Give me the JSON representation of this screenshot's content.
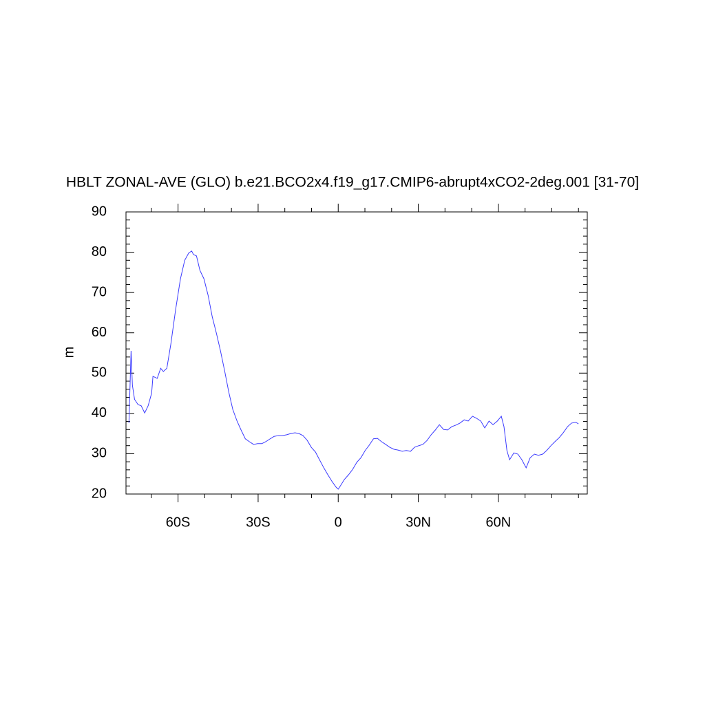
{
  "chart_data": {
    "type": "line",
    "title": "HBLT ZONAL-AVE (GLO) b.e21.BCO2x4.f19_g17.CMIP6-abrupt4xCO2-2deg.001 [31-70]",
    "ylabel": "m",
    "x": [
      -78.4,
      -77.6,
      -77.1,
      -76.3,
      -75.0,
      -73.8,
      -72.5,
      -71.2,
      -69.9,
      -69.4,
      -67.8,
      -66.5,
      -65.5,
      -64.2,
      -62.7,
      -60.9,
      -59.1,
      -57.5,
      -56.0,
      -54.9,
      -54.2,
      -53.1,
      -51.8,
      -50.3,
      -48.7,
      -47.2,
      -45.6,
      -44.1,
      -42.5,
      -41.0,
      -39.5,
      -37.9,
      -36.4,
      -34.8,
      -33.3,
      -31.7,
      -30.2,
      -28.6,
      -27.1,
      -25.5,
      -24.0,
      -22.4,
      -20.9,
      -19.3,
      -17.8,
      -16.2,
      -14.7,
      -13.2,
      -11.6,
      -10.1,
      -8.5,
      -7.0,
      -5.4,
      -3.9,
      -2.3,
      -0.8,
      0.0,
      0.8,
      2.3,
      3.9,
      5.4,
      7.0,
      8.5,
      10.1,
      11.6,
      13.2,
      14.7,
      16.2,
      17.8,
      19.3,
      20.9,
      22.4,
      24.0,
      25.5,
      27.1,
      28.6,
      30.2,
      31.7,
      33.3,
      34.8,
      36.4,
      37.9,
      39.5,
      41.0,
      42.5,
      44.1,
      45.6,
      47.2,
      48.7,
      50.3,
      51.8,
      53.4,
      54.9,
      56.5,
      58.0,
      59.6,
      61.1,
      62.1,
      63.2,
      64.2,
      65.8,
      67.3,
      68.8,
      70.4,
      71.9,
      73.5,
      75.0,
      76.6,
      78.1,
      79.7,
      81.2,
      82.8,
      84.3,
      85.9,
      87.4,
      89.0,
      90.0
    ],
    "series": [
      {
        "name": "HBLT",
        "color": "#3a3aff",
        "values": [
          37.6,
          55.5,
          47,
          43.5,
          42.2,
          41.9,
          40.1,
          41.9,
          45,
          49.2,
          48.7,
          51.2,
          50.4,
          51.2,
          57.2,
          65.8,
          73.4,
          78,
          79.8,
          80.3,
          79.4,
          79.1,
          75.5,
          73.4,
          69.2,
          64,
          59.8,
          55.5,
          50.4,
          45.3,
          41,
          38.1,
          35.9,
          33.7,
          33,
          32.3,
          32.5,
          32.5,
          33,
          33.7,
          34.3,
          34.5,
          34.5,
          34.7,
          35,
          35.2,
          35,
          34.5,
          33.3,
          31.6,
          30.4,
          28.5,
          26.5,
          24.8,
          23.1,
          21.7,
          21.2,
          22,
          23.6,
          24.8,
          26.1,
          27.9,
          29,
          30.8,
          32.1,
          33.7,
          33.8,
          33,
          32.3,
          31.6,
          31.1,
          30.9,
          30.6,
          30.8,
          30.6,
          31.6,
          32,
          32.3,
          33.3,
          34.7,
          35.9,
          37.2,
          36,
          35.9,
          36.7,
          37.1,
          37.6,
          38.4,
          38.1,
          39.3,
          38.8,
          38.1,
          36.4,
          38.1,
          37.2,
          38.1,
          39.3,
          36.7,
          30.8,
          28.5,
          30.2,
          29.9,
          28.5,
          26.5,
          29,
          29.9,
          29.6,
          29.9,
          30.8,
          32,
          33,
          34,
          35.2,
          36.7,
          37.6,
          37.8,
          37.4
        ]
      }
    ],
    "xlim": [
      -79.5,
      93.3
    ],
    "xticks": [
      {
        "value": -60,
        "label": "60S"
      },
      {
        "value": -30,
        "label": "30S"
      },
      0,
      {
        "value": 30,
        "label": "30N"
      },
      {
        "value": 60,
        "label": "60N"
      }
    ],
    "xminorticks": [
      -70,
      -50,
      -40,
      -20,
      -10,
      10,
      20,
      40,
      50,
      70,
      80,
      90
    ],
    "ylim": [
      20,
      90
    ],
    "yticks": [
      20,
      30,
      40,
      50,
      60,
      70,
      80,
      90
    ],
    "yminorticks": [
      22,
      24,
      26,
      28,
      32,
      34,
      36,
      38,
      42,
      44,
      46,
      48,
      52,
      54,
      56,
      58,
      62,
      64,
      66,
      68,
      72,
      74,
      76,
      78,
      82,
      84,
      86,
      88
    ]
  }
}
